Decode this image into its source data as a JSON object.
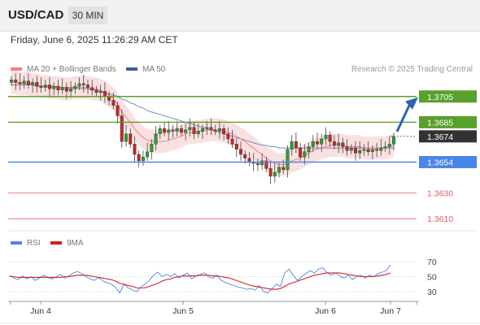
{
  "header": {
    "symbol": "USD/CAD",
    "timeframe": "30 MIN"
  },
  "datetime": "Friday, June 6, 2025 11:26:29 AM CET",
  "legend": {
    "ma20": "MA 20 + Bollinger Bands",
    "ma50": "MA 50",
    "research": "Research © 2025 Trading Central",
    "rsi": "RSI",
    "rsi_ma": "9MA"
  },
  "colors": {
    "ma20": "#f08080",
    "ma50": "#3a5f9f",
    "support": "#4a86e8",
    "resistance": "#5aa02c",
    "pivot_low": "#e35d5d",
    "current": "#333333",
    "arrow": "#2f63b0",
    "candle_up": "#2e9e2e",
    "candle_down": "#c62828",
    "rsi": "#4a86e8",
    "rsi_ma": "#d62020"
  },
  "chart_data": [
    {
      "type": "candlestick",
      "title": "",
      "x_labels": [
        "Jun 4",
        "Jun 5",
        "Jun 6",
        "Jun 7"
      ],
      "ylim": [
        1.36,
        1.372
      ],
      "price_levels": [
        {
          "value": 1.3705,
          "label": "1.3705",
          "kind": "resistance"
        },
        {
          "value": 1.3685,
          "label": "1.3685",
          "kind": "resistance"
        },
        {
          "value": 1.3674,
          "label": "1.3674",
          "kind": "current"
        },
        {
          "value": 1.3654,
          "label": "1.3654",
          "kind": "support"
        },
        {
          "value": 1.363,
          "label": "1.3630",
          "kind": "pivot"
        },
        {
          "value": 1.361,
          "label": "1.3610",
          "kind": "pivot"
        }
      ],
      "close_series": [
        1.3718,
        1.3716,
        1.3715,
        1.3717,
        1.3714,
        1.3716,
        1.3713,
        1.3712,
        1.3714,
        1.3711,
        1.3713,
        1.371,
        1.3712,
        1.3709,
        1.3711,
        1.3713,
        1.3715,
        1.3714,
        1.3712,
        1.371,
        1.3708,
        1.3709,
        1.3705,
        1.3702,
        1.3698,
        1.369,
        1.367,
        1.3676,
        1.3668,
        1.366,
        1.3655,
        1.3658,
        1.3662,
        1.3668,
        1.3676,
        1.368,
        1.3677,
        1.3679,
        1.3678,
        1.368,
        1.3677,
        1.3679,
        1.3681,
        1.3676,
        1.3678,
        1.368,
        1.3681,
        1.3679,
        1.3678,
        1.368,
        1.3676,
        1.3672,
        1.3668,
        1.3664,
        1.366,
        1.3657,
        1.3654,
        1.3653,
        1.3652,
        1.3655,
        1.3649,
        1.3643,
        1.3646,
        1.365,
        1.3648,
        1.3664,
        1.367,
        1.3665,
        1.3658,
        1.3662,
        1.3666,
        1.367,
        1.3668,
        1.3672,
        1.3675,
        1.367,
        1.3667,
        1.3669,
        1.3666,
        1.3663,
        1.3665,
        1.3661,
        1.3663,
        1.3664,
        1.3662,
        1.3664,
        1.3663,
        1.3665,
        1.3666,
        1.3668,
        1.3674
      ],
      "ma20": [
        1.3716,
        1.3716,
        1.3715,
        1.3715,
        1.3715,
        1.3714,
        1.3714,
        1.3713,
        1.3713,
        1.3712,
        1.3712,
        1.3712,
        1.3711,
        1.3711,
        1.3711,
        1.3712,
        1.3712,
        1.3712,
        1.3712,
        1.3711,
        1.3711,
        1.371,
        1.3708,
        1.3706,
        1.3703,
        1.3699,
        1.3693,
        1.3689,
        1.3685,
        1.368,
        1.3676,
        1.3673,
        1.3671,
        1.367,
        1.367,
        1.367,
        1.367,
        1.3671,
        1.3672,
        1.3673,
        1.3674,
        1.3676,
        1.3677,
        1.3677,
        1.3678,
        1.3678,
        1.3679,
        1.3679,
        1.3679,
        1.3679,
        1.3678,
        1.3677,
        1.3676,
        1.3674,
        1.3672,
        1.367,
        1.3667,
        1.3665,
        1.3662,
        1.366,
        1.3657,
        1.3655,
        1.3653,
        1.3652,
        1.3652,
        1.3653,
        1.3655,
        1.3656,
        1.3657,
        1.3659,
        1.3661,
        1.3663,
        1.3664,
        1.3665,
        1.3666,
        1.3667,
        1.3667,
        1.3667,
        1.3667,
        1.3666,
        1.3666,
        1.3666,
        1.3666,
        1.3665,
        1.3665,
        1.3665,
        1.3665,
        1.3665,
        1.3665,
        1.3666,
        1.3667
      ],
      "ma50": [
        1.3714,
        1.3714,
        1.3714,
        1.3714,
        1.3714,
        1.3714,
        1.3713,
        1.3713,
        1.3713,
        1.3713,
        1.3713,
        1.3712,
        1.3712,
        1.3712,
        1.3712,
        1.3712,
        1.3711,
        1.3711,
        1.3711,
        1.371,
        1.371,
        1.3709,
        1.3708,
        1.3707,
        1.3706,
        1.3705,
        1.3703,
        1.3702,
        1.37,
        1.3699,
        1.3697,
        1.3696,
        1.3694,
        1.3693,
        1.3692,
        1.3691,
        1.369,
        1.3689,
        1.3688,
        1.3687,
        1.3686,
        1.3685,
        1.3684,
        1.3683,
        1.3682,
        1.3681,
        1.368,
        1.3679,
        1.3678,
        1.3677,
        1.3676,
        1.3675,
        1.3674,
        1.3673,
        1.3672,
        1.3671,
        1.367,
        1.3669,
        1.3668,
        1.3667,
        1.3667,
        1.3666,
        1.3666,
        1.3665,
        1.3665,
        1.3665,
        1.3665,
        1.3665,
        1.3665,
        1.3665,
        1.3665,
        1.3665,
        1.3665,
        1.3665,
        1.3665,
        1.3665,
        1.3665,
        1.3665,
        1.3665,
        1.3665,
        1.3665,
        1.3665,
        1.3665,
        1.3665,
        1.3665,
        1.3665,
        1.3665,
        1.3665,
        1.3665,
        1.3665,
        1.3665
      ],
      "band_width": 0.0009,
      "forecast": {
        "from": 1.3674,
        "to": 1.3705
      }
    },
    {
      "type": "line",
      "title": "",
      "ylim": [
        20,
        80
      ],
      "y_ticks": [
        "70",
        "50",
        "30"
      ],
      "y_tick_values": [
        70,
        50,
        30
      ],
      "series": [
        {
          "name": "RSI",
          "values": [
            52,
            48,
            46,
            51,
            47,
            50,
            45,
            48,
            52,
            49,
            47,
            50,
            53,
            48,
            51,
            55,
            57,
            54,
            50,
            47,
            45,
            49,
            44,
            42,
            40,
            36,
            28,
            40,
            35,
            32,
            30,
            36,
            40,
            45,
            52,
            56,
            50,
            53,
            50,
            54,
            48,
            52,
            55,
            47,
            51,
            53,
            55,
            50,
            48,
            52,
            45,
            42,
            40,
            38,
            36,
            35,
            33,
            34,
            32,
            38,
            30,
            28,
            34,
            40,
            37,
            55,
            60,
            52,
            45,
            50,
            54,
            58,
            55,
            60,
            62,
            55,
            52,
            55,
            51,
            48,
            52,
            46,
            50,
            52,
            48,
            52,
            50,
            54,
            56,
            58,
            66
          ]
        },
        {
          "name": "9MA",
          "values": [
            50,
            50,
            49,
            49,
            49,
            49,
            49,
            49,
            49,
            49,
            49,
            49,
            49,
            50,
            50,
            51,
            52,
            52,
            52,
            51,
            50,
            49,
            48,
            47,
            46,
            44,
            41,
            40,
            38,
            37,
            35,
            35,
            35,
            37,
            39,
            41,
            44,
            46,
            47,
            49,
            50,
            51,
            51,
            51,
            51,
            52,
            52,
            52,
            51,
            51,
            50,
            49,
            48,
            46,
            44,
            42,
            40,
            38,
            37,
            36,
            35,
            34,
            33,
            33,
            34,
            37,
            40,
            42,
            44,
            46,
            48,
            50,
            52,
            53,
            54,
            55,
            55,
            55,
            55,
            54,
            53,
            52,
            51,
            50,
            50,
            50,
            50,
            51,
            52,
            53,
            55
          ]
        }
      ]
    }
  ]
}
